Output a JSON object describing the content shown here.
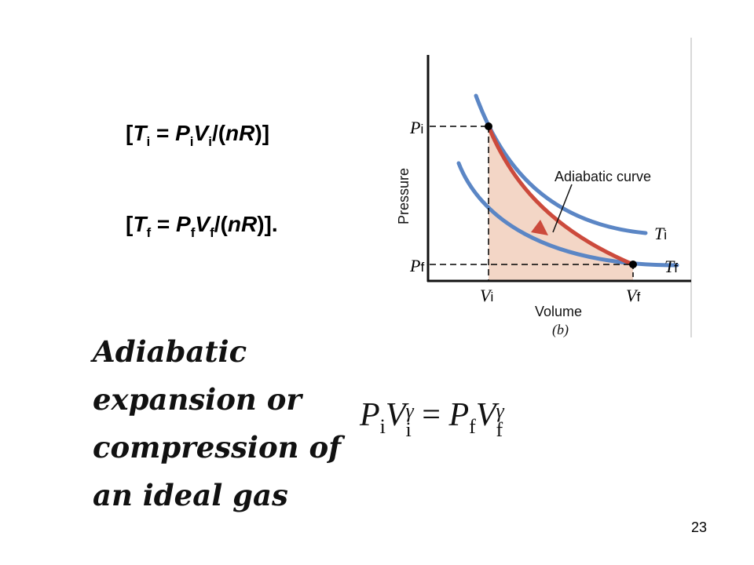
{
  "equations": {
    "ti": {
      "open": "[",
      "T": "T",
      "i": "i",
      "eq": " = ",
      "P": "P",
      "V": "V",
      "tail": "/(",
      "nR": "nR",
      "close": ")]"
    },
    "tf": {
      "open": "[",
      "T": "T",
      "f": "f",
      "eq": " = ",
      "P": "P",
      "V": "V",
      "tail": "/(",
      "nR": "nR",
      "close": ")]."
    }
  },
  "diagram": {
    "p_label": "P",
    "v_label": "V",
    "t_label": "T",
    "sub_i": "i",
    "sub_f": "f",
    "y_axis_label": "Pressure",
    "x_axis_label": "Volume",
    "panel_label": "(b)",
    "curve_label": "Adiabatic curve",
    "colors": {
      "isotherm": "#5b86c5",
      "adiabat": "#cc4a3c",
      "work_area": "#f3d6c6"
    }
  },
  "caption": {
    "line1": "Adiabatic",
    "line2": "expansion or",
    "line3": "compression of",
    "line4": "an ideal gas"
  },
  "relation": {
    "P": "P",
    "V": "V",
    "gamma": "γ",
    "i": "i",
    "f": "f",
    "equals": " = "
  },
  "page_number": "23"
}
